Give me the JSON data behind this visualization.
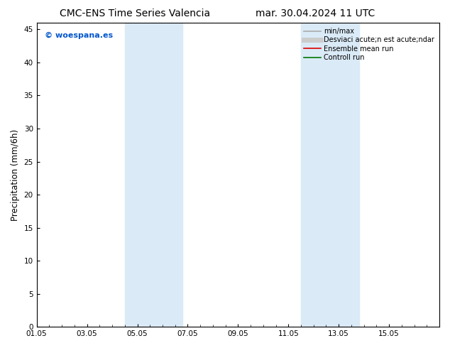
{
  "title_left": "CMC-ENS Time Series Valencia",
  "title_right": "mar. 30.04.2024 11 UTC",
  "xlabel": "",
  "ylabel": "Precipitation (mm/6h)",
  "xlim": [
    0,
    16
  ],
  "ylim": [
    0,
    46
  ],
  "yticks": [
    0,
    5,
    10,
    15,
    20,
    25,
    30,
    35,
    40,
    45
  ],
  "xtick_labels": [
    "01.05",
    "03.05",
    "05.05",
    "07.05",
    "09.05",
    "11.05",
    "13.05",
    "15.05"
  ],
  "xtick_positions": [
    0,
    2,
    4,
    6,
    8,
    10,
    12,
    14
  ],
  "shaded_bands": [
    {
      "xmin": 3.5,
      "xmax": 5.8
    },
    {
      "xmin": 10.5,
      "xmax": 12.8
    }
  ],
  "shade_color": "#daeaf7",
  "background_color": "#ffffff",
  "plot_bg_color": "#ffffff",
  "watermark": "© woespana.es",
  "watermark_color": "#0055cc",
  "legend_entries": [
    {
      "label": "min/max",
      "color": "#aaaaaa",
      "lw": 1.2,
      "style": "-"
    },
    {
      "label": "Desviaci acute;n est acute;ndar",
      "color": "#cccccc",
      "lw": 5,
      "style": "-"
    },
    {
      "label": "Ensemble mean run",
      "color": "#dd0000",
      "lw": 1.2,
      "style": "-"
    },
    {
      "label": "Controll run",
      "color": "#007700",
      "lw": 1.2,
      "style": "-"
    }
  ],
  "title_fontsize": 10,
  "axis_fontsize": 8.5,
  "tick_fontsize": 7.5,
  "legend_fontsize": 7,
  "watermark_fontsize": 8
}
